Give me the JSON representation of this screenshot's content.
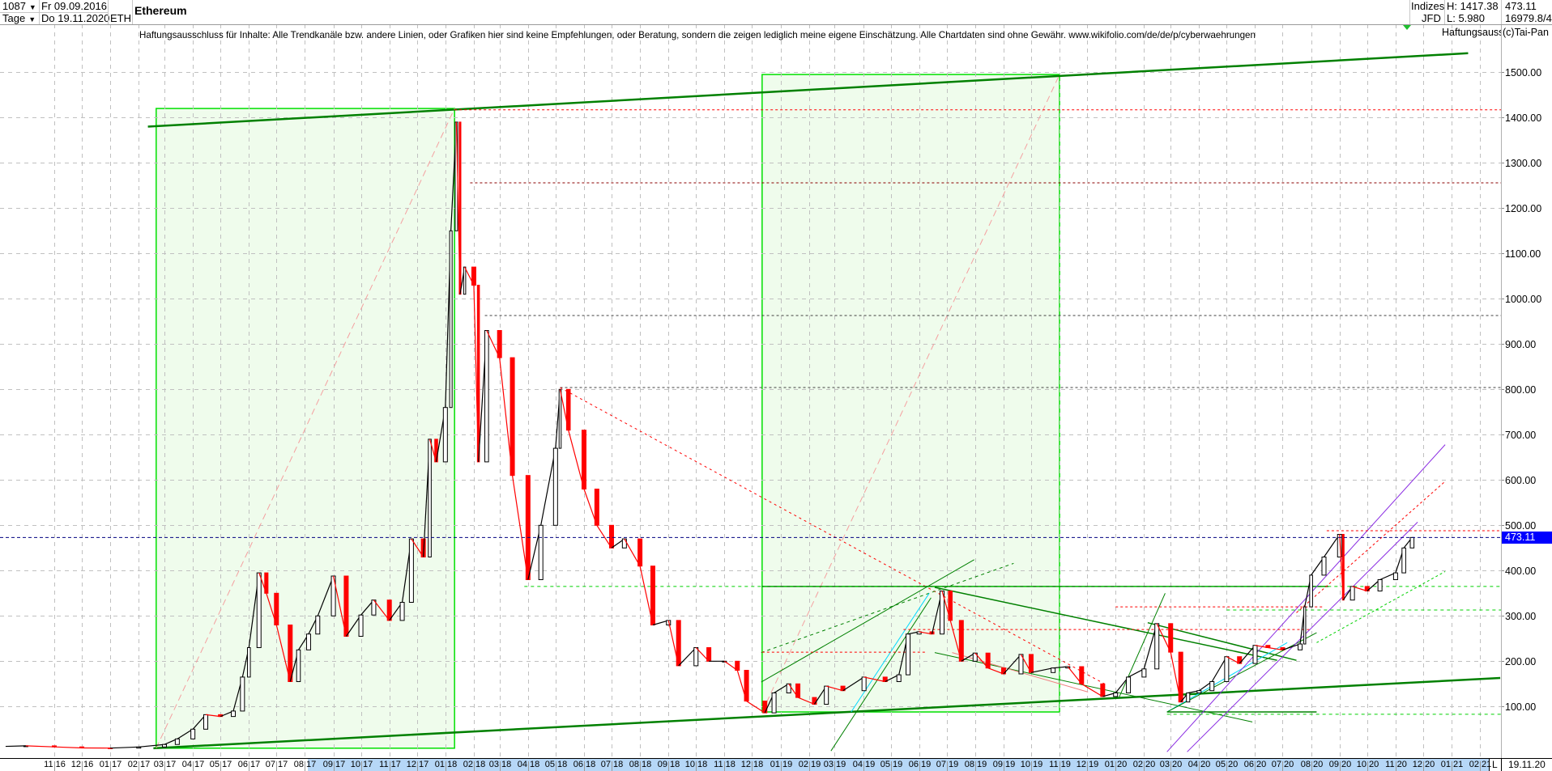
{
  "header": {
    "bar_count": "1087",
    "period": "Tage",
    "start_date": "Fr 09.09.2016",
    "end_date": "Do 19.11.2020",
    "symbol": "ETH",
    "title": "Ethereum",
    "source_top": "Indizes",
    "source_bottom": "JFD",
    "high": "H: 1417.38",
    "low": "L: 5.980",
    "last": "473.11",
    "volume": "16979.8/4"
  },
  "disclaimer": "Haftungsausschluss für Inhalte: Alle Trendkanäle bzw. andere Linien, oder Grafiken hier sind keine Empfehlungen, oder Beratung, sondern die zeigen lediglich meine eigene Einschätzung. Alle Chartdaten sind ohne Gewähr.  www.wikifolio.com/de/de/p/cyberwaehrungen",
  "disclaimer_short": "Haftungsausschluss",
  "copyright": "(c)Tai-Pan",
  "xaxis": {
    "scale_label": "L",
    "date_label": "19.11.20",
    "months": [
      "11 16",
      "12 16",
      "01 17",
      "02 17",
      "03 17",
      "04 17",
      "05 17",
      "06 17",
      "07 17",
      "08 17",
      "09 17",
      "10 17",
      "11 17",
      "12 17",
      "01 18",
      "02 18",
      "03 18",
      "04 18",
      "05 18",
      "06 18",
      "07 18",
      "08 18",
      "09 18",
      "10 18",
      "11 18",
      "12 18",
      "01 19",
      "02 19",
      "03 19",
      "04 19",
      "05 19",
      "06 19",
      "07 19",
      "08 19",
      "09 19",
      "10 19",
      "11 19",
      "12 19",
      "01 20",
      "02 20",
      "03 20",
      "04 20",
      "05 20",
      "06 20",
      "07 20",
      "08 20",
      "09 20",
      "10 20",
      "11 20",
      "12 20",
      "01 21",
      "02 21"
    ]
  },
  "colors": {
    "up": "#ffffff",
    "up_outline": "#000000",
    "down": "#ff0000",
    "current_price_bg": "#0000ff",
    "trend_green": "#008000",
    "box_green": "#00e000",
    "box_fill": "#effcec",
    "grid": "#c0c0c0"
  },
  "chart_data": {
    "type": "candlestick",
    "ylim": [
      0,
      1500
    ],
    "yticks": [
      "100.00",
      "200.00",
      "300.00",
      "400.00",
      "500.00",
      "600.00",
      "700.00",
      "800.00",
      "900.00",
      "1000.00",
      "1100.00",
      "1200.00",
      "1300.00",
      "1400.00",
      "1500.00"
    ],
    "xlim": [
      "2016-09-09",
      "2021-02-28"
    ],
    "grid": true,
    "current_price": 473.11,
    "current_price_label": "473.11",
    "closes": [
      [
        "2016-09-09",
        12
      ],
      [
        "2016-10-01",
        13.2
      ],
      [
        "2016-11-01",
        10.9
      ],
      [
        "2016-12-01",
        8.6
      ],
      [
        "2017-01-01",
        8.2
      ],
      [
        "2017-02-01",
        10.7
      ],
      [
        "2017-03-01",
        16.2
      ],
      [
        "2017-03-15",
        28.5
      ],
      [
        "2017-04-01",
        50
      ],
      [
        "2017-04-15",
        82
      ],
      [
        "2017-05-01",
        78
      ],
      [
        "2017-05-15",
        90
      ],
      [
        "2017-05-25",
        165
      ],
      [
        "2017-06-01",
        230
      ],
      [
        "2017-06-12",
        395
      ],
      [
        "2017-06-20",
        350
      ],
      [
        "2017-07-01",
        280
      ],
      [
        "2017-07-16",
        155
      ],
      [
        "2017-07-25",
        225
      ],
      [
        "2017-08-05",
        260
      ],
      [
        "2017-08-15",
        300
      ],
      [
        "2017-09-01",
        388
      ],
      [
        "2017-09-15",
        255
      ],
      [
        "2017-10-01",
        302
      ],
      [
        "2017-10-15",
        335
      ],
      [
        "2017-11-01",
        290
      ],
      [
        "2017-11-15",
        330
      ],
      [
        "2017-11-25",
        470
      ],
      [
        "2017-12-08",
        430
      ],
      [
        "2017-12-15",
        690
      ],
      [
        "2017-12-22",
        640
      ],
      [
        "2018-01-01",
        760
      ],
      [
        "2018-01-07",
        1150
      ],
      [
        "2018-01-13",
        1390
      ],
      [
        "2018-01-17",
        1010
      ],
      [
        "2018-01-22",
        1070
      ],
      [
        "2018-02-01",
        1030
      ],
      [
        "2018-02-06",
        640
      ],
      [
        "2018-02-15",
        930
      ],
      [
        "2018-03-01",
        870
      ],
      [
        "2018-03-15",
        610
      ],
      [
        "2018-04-01",
        380
      ],
      [
        "2018-04-15",
        500
      ],
      [
        "2018-05-01",
        670
      ],
      [
        "2018-05-06",
        800
      ],
      [
        "2018-05-15",
        710
      ],
      [
        "2018-06-01",
        580
      ],
      [
        "2018-06-15",
        500
      ],
      [
        "2018-07-01",
        450
      ],
      [
        "2018-07-15",
        470
      ],
      [
        "2018-08-01",
        410
      ],
      [
        "2018-08-15",
        280
      ],
      [
        "2018-09-01",
        290
      ],
      [
        "2018-09-12",
        190
      ],
      [
        "2018-10-01",
        230
      ],
      [
        "2018-10-15",
        200
      ],
      [
        "2018-11-01",
        200
      ],
      [
        "2018-11-15",
        180
      ],
      [
        "2018-11-25",
        112
      ],
      [
        "2018-12-15",
        86
      ],
      [
        "2018-12-25",
        130
      ],
      [
        "2019-01-10",
        150
      ],
      [
        "2019-01-20",
        120
      ],
      [
        "2019-02-07",
        105
      ],
      [
        "2019-02-20",
        145
      ],
      [
        "2019-03-10",
        135
      ],
      [
        "2019-04-02",
        165
      ],
      [
        "2019-04-25",
        155
      ],
      [
        "2019-05-10",
        170
      ],
      [
        "2019-05-20",
        260
      ],
      [
        "2019-06-01",
        265
      ],
      [
        "2019-06-15",
        260
      ],
      [
        "2019-06-26",
        355
      ],
      [
        "2019-07-05",
        290
      ],
      [
        "2019-07-17",
        200
      ],
      [
        "2019-08-01",
        218
      ],
      [
        "2019-08-15",
        185
      ],
      [
        "2019-09-01",
        172
      ],
      [
        "2019-09-20",
        215
      ],
      [
        "2019-10-01",
        175
      ],
      [
        "2019-10-25",
        185
      ],
      [
        "2019-11-10",
        188
      ],
      [
        "2019-11-25",
        150
      ],
      [
        "2019-12-18",
        122
      ],
      [
        "2020-01-01",
        130
      ],
      [
        "2020-01-15",
        165
      ],
      [
        "2020-02-01",
        183
      ],
      [
        "2020-02-15",
        283
      ],
      [
        "2020-03-01",
        220
      ],
      [
        "2020-03-12",
        110
      ],
      [
        "2020-03-20",
        130
      ],
      [
        "2020-04-01",
        135
      ],
      [
        "2020-04-15",
        155
      ],
      [
        "2020-05-01",
        210
      ],
      [
        "2020-05-15",
        195
      ],
      [
        "2020-06-01",
        235
      ],
      [
        "2020-06-15",
        230
      ],
      [
        "2020-07-01",
        225
      ],
      [
        "2020-07-20",
        238
      ],
      [
        "2020-07-25",
        320
      ],
      [
        "2020-08-01",
        390
      ],
      [
        "2020-08-15",
        430
      ],
      [
        "2020-09-01",
        480
      ],
      [
        "2020-09-05",
        335
      ],
      [
        "2020-09-15",
        365
      ],
      [
        "2020-10-01",
        355
      ],
      [
        "2020-10-15",
        380
      ],
      [
        "2020-11-01",
        395
      ],
      [
        "2020-11-10",
        450
      ],
      [
        "2020-11-19",
        473.11
      ]
    ],
    "boxes": [
      {
        "from": [
          "2017-02-20",
          8
        ],
        "to": [
          "2018-01-11",
          1420
        ]
      },
      {
        "from": [
          "2018-12-12",
          88
        ],
        "to": [
          "2019-11-01",
          1495
        ]
      }
    ],
    "lines": [
      {
        "from": [
          "2017-02-11",
          1380
        ],
        "to": [
          "2021-01-19",
          1542
        ],
        "color": "#008000",
        "width": 2.5,
        "dash": ""
      },
      {
        "from": [
          "2017-02-17",
          8
        ],
        "to": [
          "2021-02-23",
          163
        ],
        "color": "#008000",
        "width": 2.5,
        "dash": ""
      },
      {
        "from": [
          "2017-02-20",
          8
        ],
        "to": [
          "2018-01-11",
          1420
        ],
        "color": "#f4a0a0",
        "width": 1,
        "dash": "8 5"
      },
      {
        "from": [
          "2018-12-12",
          88
        ],
        "to": [
          "2019-11-01",
          1495
        ],
        "color": "#f4a0a0",
        "width": 1,
        "dash": "8 5"
      },
      {
        "from": [
          "2018-01-11",
          1417
        ],
        "to": [
          "2021-02-24",
          1417
        ],
        "color": "#ff0000",
        "width": 1,
        "dash": "3 3"
      },
      {
        "from": [
          "2018-01-28",
          1256
        ],
        "to": [
          "2021-02-24",
          1256
        ],
        "color": "#8b0000",
        "width": 1,
        "dash": "3 3"
      },
      {
        "from": [
          "2018-02-13",
          963
        ],
        "to": [
          "2021-02-24",
          963
        ],
        "color": "#404040",
        "width": 1,
        "dash": "3 3"
      },
      {
        "from": [
          "2018-05-06",
          804
        ],
        "to": [
          "2021-02-24",
          804
        ],
        "color": "#404040",
        "width": 1,
        "dash": "3 3"
      },
      {
        "from": [
          "2018-05-06",
          804
        ],
        "to": [
          "2019-12-20",
          150
        ],
        "color": "#ff0000",
        "width": 1,
        "dash": "3 4"
      },
      {
        "from": [
          "2018-12-12",
          365
        ],
        "to": [
          "2020-08-20",
          365
        ],
        "color": "#008000",
        "width": 1.5,
        "dash": ""
      },
      {
        "from": [
          "2018-03-28",
          365
        ],
        "to": [
          "2021-02-24",
          365
        ],
        "color": "#00d000",
        "width": 1,
        "dash": "4 4"
      },
      {
        "from": [
          "2019-06-18",
          363
        ],
        "to": [
          "2020-06-25",
          202
        ],
        "color": "#008000",
        "width": 1.5,
        "dash": ""
      },
      {
        "from": [
          "2018-12-11",
          154
        ],
        "to": [
          "2019-07-31",
          424
        ],
        "color": "#008000",
        "width": 1,
        "dash": ""
      },
      {
        "from": [
          "2018-12-11",
          219
        ],
        "to": [
          "2019-09-12",
          416
        ],
        "color": "#008000",
        "width": 1,
        "dash": "4 4"
      },
      {
        "from": [
          "2019-02-25",
          2
        ],
        "to": [
          "2019-06-14",
          340
        ],
        "color": "#008000",
        "width": 1,
        "dash": ""
      },
      {
        "from": [
          "2019-03-19",
          88
        ],
        "to": [
          "2019-06-12",
          350
        ],
        "color": "#00d8ff",
        "width": 1,
        "dash": ""
      },
      {
        "from": [
          "2019-06-18",
          219
        ],
        "to": [
          "2020-05-29",
          66
        ],
        "color": "#008000",
        "width": 1,
        "dash": ""
      },
      {
        "from": [
          "2019-07-07",
          219
        ],
        "to": [
          "2019-12-02",
          132
        ],
        "color": "#f08080",
        "width": 1,
        "dash": ""
      },
      {
        "from": [
          "2020-01-05",
          121
        ],
        "to": [
          "2020-02-24",
          350
        ],
        "color": "#008000",
        "width": 1,
        "dash": ""
      },
      {
        "from": [
          "2020-02-05",
          285
        ],
        "to": [
          "2020-07-16",
          202
        ],
        "color": "#008000",
        "width": 1.5,
        "dash": ""
      },
      {
        "from": [
          "2020-02-26",
          88
        ],
        "to": [
          "2020-07-06",
          241
        ],
        "color": "#00d8ff",
        "width": 1,
        "dash": ""
      },
      {
        "from": [
          "2020-02-26",
          88
        ],
        "to": [
          "2020-08-07",
          263
        ],
        "color": "#008000",
        "width": 1,
        "dash": ""
      },
      {
        "from": [
          "2020-02-26",
          88
        ],
        "to": [
          "2020-08-07",
          88
        ],
        "color": "#008000",
        "width": 1.5,
        "dash": ""
      },
      {
        "from": [
          "2020-02-26",
          0
        ],
        "to": [
          "2020-12-25",
          678
        ],
        "color": "#8a2be2",
        "width": 1,
        "dash": ""
      },
      {
        "from": [
          "2020-03-19",
          0
        ],
        "to": [
          "2020-11-25",
          507
        ],
        "color": "#8a2be2",
        "width": 1,
        "dash": ""
      },
      {
        "from": [
          "2020-07-16",
          307
        ],
        "to": [
          "2020-12-25",
          597
        ],
        "color": "#ff0000",
        "width": 1,
        "dash": "3 3"
      },
      {
        "from": [
          "2020-08-07",
          241
        ],
        "to": [
          "2020-12-25",
          398
        ],
        "color": "#00d000",
        "width": 1,
        "dash": "3 3"
      },
      {
        "from": [
          "2020-08-18",
          488
        ],
        "to": [
          "2021-02-24",
          488
        ],
        "color": "#ff0000",
        "width": 1,
        "dash": "3 3"
      },
      {
        "from": [
          "2020-05-01",
          313
        ],
        "to": [
          "2021-02-24",
          313
        ],
        "color": "#00d000",
        "width": 1,
        "dash": "4 4"
      },
      {
        "from": [
          "2020-02-26",
          83
        ],
        "to": [
          "2021-02-24",
          83
        ],
        "color": "#00d000",
        "width": 1,
        "dash": "4 4"
      },
      {
        "from": [
          "2018-12-12",
          220
        ],
        "to": [
          "2019-06-10",
          220
        ],
        "color": "#ff0000",
        "width": 1,
        "dash": "3 3"
      },
      {
        "from": [
          "2019-05-15",
          270
        ],
        "to": [
          "2020-08-01",
          270
        ],
        "color": "#ff0000",
        "width": 1,
        "dash": "3 3"
      },
      {
        "from": [
          "2020-01-01",
          320
        ],
        "to": [
          "2020-08-15",
          320
        ],
        "color": "#ff0000",
        "width": 1,
        "dash": "3 3"
      }
    ]
  }
}
